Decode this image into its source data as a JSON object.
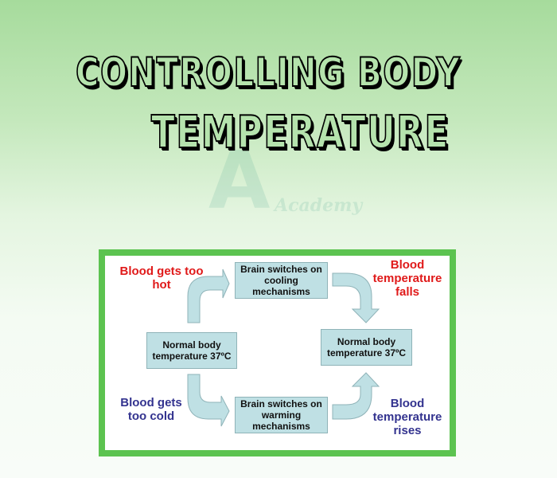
{
  "title": {
    "line1": "CONTROLLING  BODY",
    "line2": "TEMPERATURE"
  },
  "watermark": {
    "letter": "A",
    "text": "Academy"
  },
  "diagram": {
    "boxes": {
      "normal_left": "Normal body temperature 37ºC",
      "cooling": "Brain switches on cooling mechanisms",
      "warming": "Brain switches on warming mechanisms",
      "normal_right": "Normal body temperature 37ºC"
    },
    "labels": {
      "too_hot": "Blood gets too hot",
      "falls": "Blood temperature falls",
      "too_cold": "Blood gets too cold",
      "rises": "Blood temperature rises"
    }
  },
  "colors": {
    "frame": "#5cc350",
    "box": "#bfe0e4",
    "hot_text": "#e01a1a",
    "cold_text": "#33338f"
  }
}
